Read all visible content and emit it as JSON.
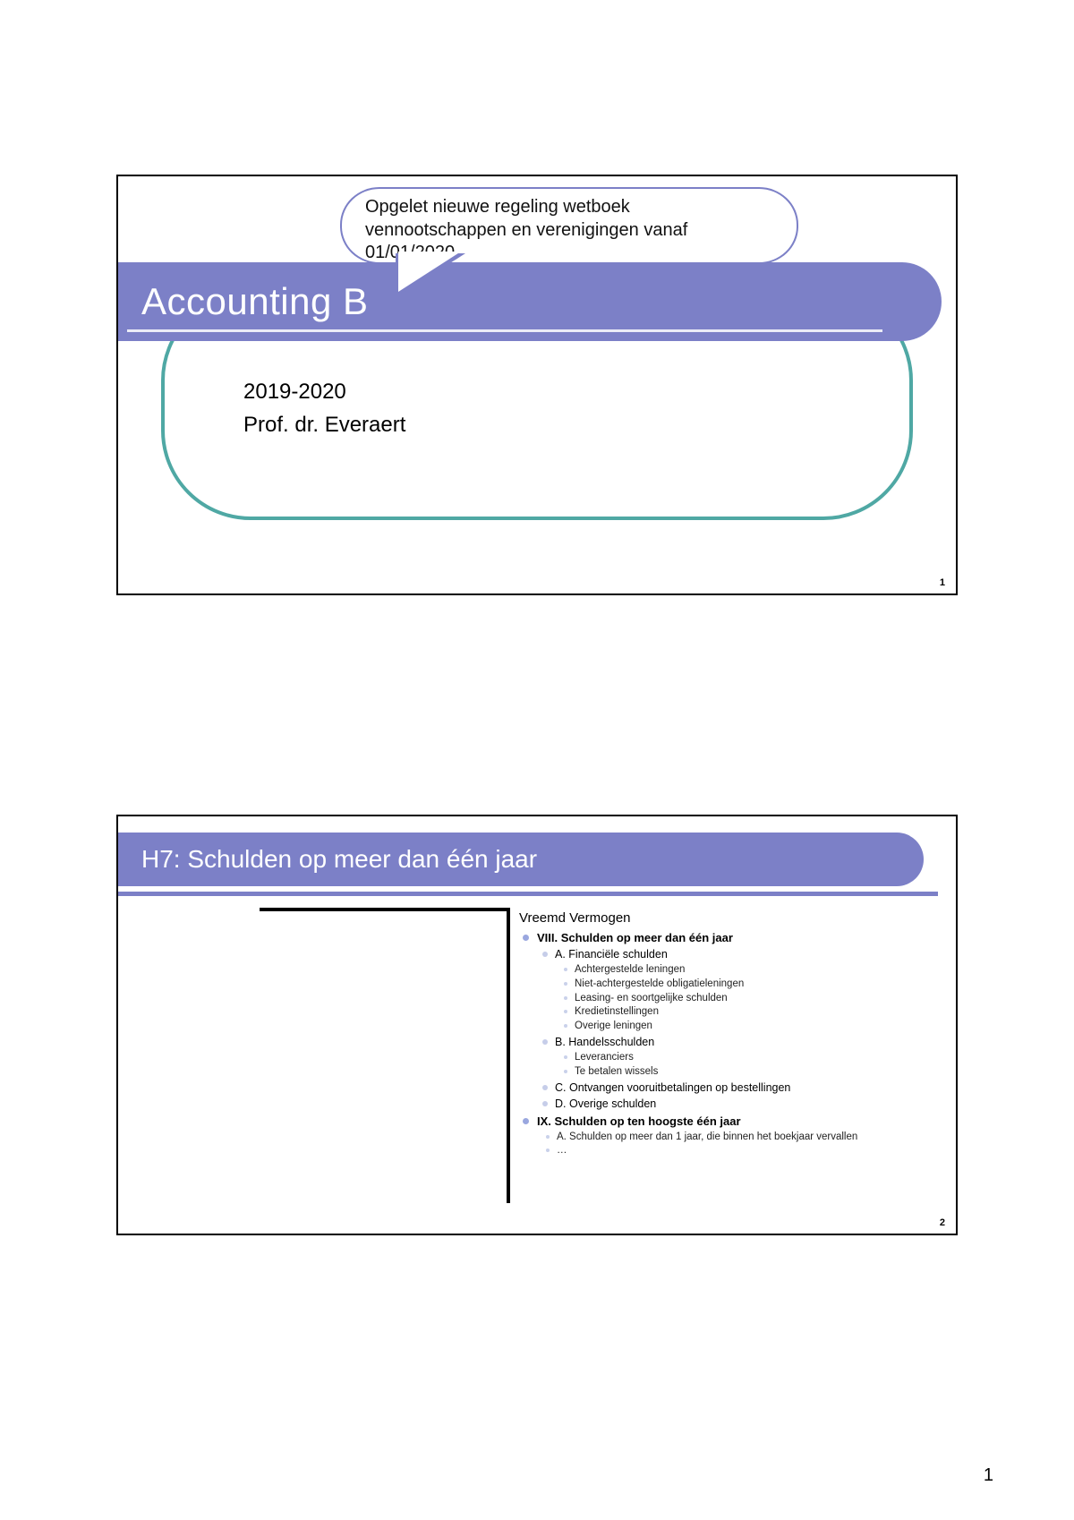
{
  "page": {
    "number": "1"
  },
  "colors": {
    "purple": "#7c80c7",
    "teal": "#4fa8a4",
    "black": "#000000",
    "white": "#ffffff"
  },
  "slide1": {
    "number": "1",
    "title": "Accounting B",
    "year": "2019-2020",
    "professor": "Prof. dr. Everaert",
    "callout": "Opgelet nieuwe regeling wetboek vennootschappen en verenigingen vanaf 01/01/2020"
  },
  "slide2": {
    "number": "2",
    "title": "H7: Schulden op meer dan één jaar",
    "heading": "Vreemd Vermogen",
    "viii": {
      "label": "VIII. Schulden op meer dan één jaar",
      "a": {
        "label": "A. Financiële schulden",
        "items": [
          "Achtergestelde leningen",
          "Niet-achtergestelde obligatieleningen",
          "Leasing- en soortgelijke schulden",
          "Kredietinstellingen",
          "Overige leningen"
        ]
      },
      "b": {
        "label": "B. Handelsschulden",
        "items": [
          "Leveranciers",
          "Te betalen wissels"
        ]
      },
      "c": "C. Ontvangen vooruitbetalingen op bestellingen",
      "d": "D. Overige schulden"
    },
    "ix": {
      "label": "IX. Schulden op ten hoogste één jaar",
      "items": [
        "A. Schulden op meer dan 1 jaar, die binnen het boekjaar vervallen",
        "…"
      ]
    }
  }
}
